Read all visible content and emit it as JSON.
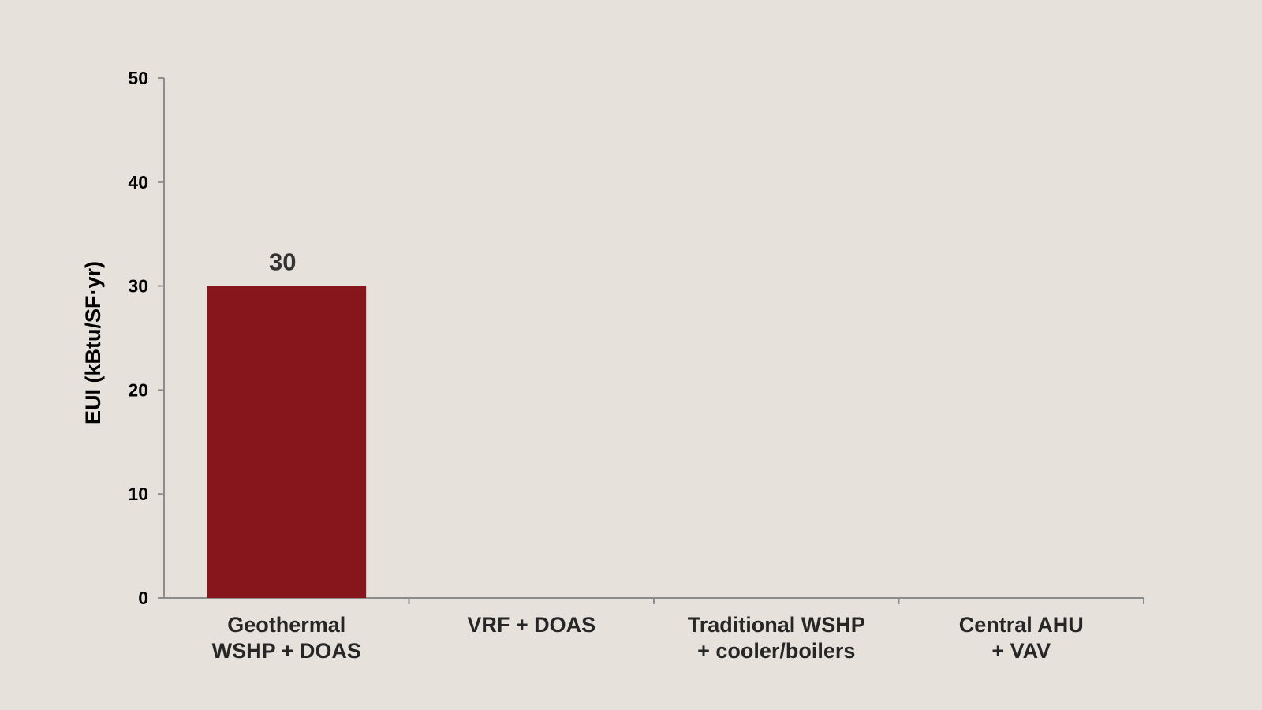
{
  "chart_data": {
    "type": "bar",
    "categories": [
      [
        "Geothermal",
        "WSHP + DOAS"
      ],
      [
        "VRF + DOAS"
      ],
      [
        "Traditional WSHP",
        "+ cooler/boilers"
      ],
      [
        "Central AHU",
        "+ VAV"
      ]
    ],
    "values": [
      30,
      null,
      null,
      null
    ],
    "data_labels": [
      "30",
      "",
      "",
      ""
    ],
    "ylabel": "EUI (kBtu/SF·yr)",
    "ylim": [
      0,
      50
    ],
    "yticks": [
      0,
      10,
      20,
      30,
      40,
      50
    ],
    "grid": false,
    "legend": "none",
    "colors": {
      "bar": "#87161c",
      "axis": "#8c8c8c",
      "background": "#e6e1db"
    }
  }
}
